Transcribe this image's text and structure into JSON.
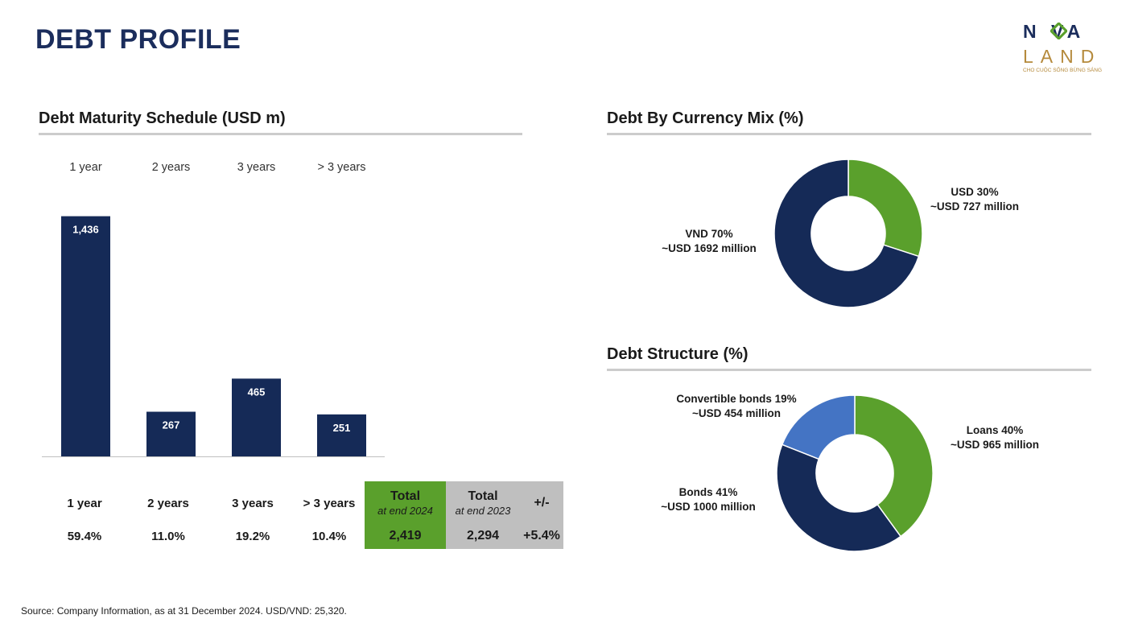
{
  "page": {
    "title": "DEBT PROFILE",
    "source": "Source: Company Information, as at 31 December 2024. USD/VND: 25,320."
  },
  "logo": {
    "line1": "N  VA",
    "line2": "LAND",
    "tagline": "CHO CUỘC SỐNG BỪNG SÁNG"
  },
  "colors": {
    "navy": "#152a57",
    "green": "#5aa02c",
    "blue": "#4474c4",
    "gray": "#bfbfbf"
  },
  "sections": {
    "maturity": "Debt Maturity Schedule (USD m)",
    "currency": "Debt By Currency Mix (%)",
    "structure": "Debt Structure (%)"
  },
  "summary": {
    "buckets": [
      {
        "label": "1 year",
        "pct": "59.4%"
      },
      {
        "label": "2 years",
        "pct": "11.0%"
      },
      {
        "label": "3 years",
        "pct": "19.2%"
      },
      {
        "label": "> 3 years",
        "pct": "10.4%"
      }
    ],
    "total_2024": {
      "label": "Total",
      "sub": "at end 2024",
      "value": "2,419"
    },
    "total_2023": {
      "label": "Total",
      "sub": "at end 2023",
      "value": "2,294"
    },
    "change": {
      "label": "+/-",
      "value": "+5.4%"
    }
  },
  "chart_data": [
    {
      "type": "bar",
      "title": "Debt Maturity Schedule (USD m)",
      "categories": [
        "1 year",
        "2 years",
        "3 years",
        "> 3 years"
      ],
      "values": [
        1436,
        267,
        465,
        251
      ],
      "value_labels": [
        "1,436",
        "267",
        "465",
        "251"
      ],
      "ylim": [
        0,
        1540
      ]
    },
    {
      "type": "pie",
      "title": "Debt By Currency Mix (%)",
      "slices": [
        {
          "name": "USD",
          "value": 30,
          "label": "USD 30%",
          "sub": "~USD 727 million",
          "color": "#5aa02c"
        },
        {
          "name": "VND",
          "value": 70,
          "label": "VND 70%",
          "sub": "~USD 1692 million",
          "color": "#152a57"
        }
      ]
    },
    {
      "type": "pie",
      "title": "Debt Structure (%)",
      "slices": [
        {
          "name": "Loans",
          "value": 40,
          "label": "Loans 40%",
          "sub": "~USD 965 million",
          "color": "#5aa02c"
        },
        {
          "name": "Bonds",
          "value": 41,
          "label": "Bonds 41%",
          "sub": "~USD 1000 million",
          "color": "#152a57"
        },
        {
          "name": "Convertible bonds",
          "value": 19,
          "label": "Convertible bonds 19%",
          "sub": "~USD 454 million",
          "color": "#4474c4"
        }
      ]
    }
  ]
}
